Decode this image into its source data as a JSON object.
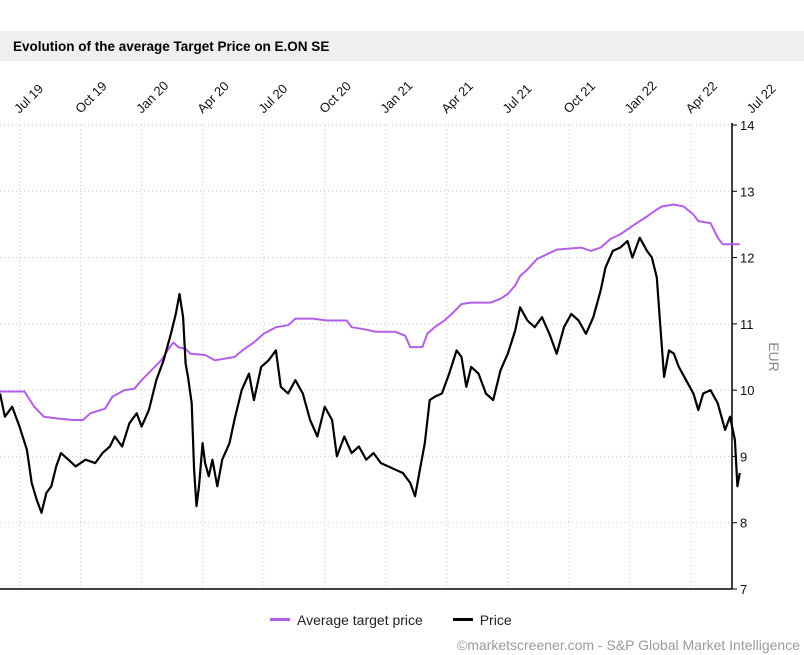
{
  "chart_data": {
    "type": "line",
    "title": "Evolution of the average Target Price on E.ON SE",
    "ylabel": "EUR",
    "xlabel": "",
    "ylim": [
      7,
      14
    ],
    "yticks": [
      7,
      8,
      9,
      10,
      11,
      12,
      13,
      14
    ],
    "xrange": [
      2019.42,
      2022.5
    ],
    "xticks": [
      {
        "t": 2019.5,
        "label": "Jul 19"
      },
      {
        "t": 2019.75,
        "label": "Oct 19"
      },
      {
        "t": 2020.0,
        "label": "Jan 20"
      },
      {
        "t": 2020.25,
        "label": "Apr 20"
      },
      {
        "t": 2020.5,
        "label": "Jul 20"
      },
      {
        "t": 2020.75,
        "label": "Oct 20"
      },
      {
        "t": 2021.0,
        "label": "Jan 21"
      },
      {
        "t": 2021.25,
        "label": "Apr 21"
      },
      {
        "t": 2021.5,
        "label": "Jul 21"
      },
      {
        "t": 2021.75,
        "label": "Oct 21"
      },
      {
        "t": 2022.0,
        "label": "Jan 22"
      },
      {
        "t": 2022.25,
        "label": "Apr 22"
      },
      {
        "t": 2022.5,
        "label": "Jul 22"
      }
    ],
    "grid": true,
    "legend_position": "bottom",
    "series": [
      {
        "name": "Average target price",
        "color": "#b35ee8",
        "points": [
          [
            2019.42,
            9.98
          ],
          [
            2019.52,
            9.98
          ],
          [
            2019.56,
            9.75
          ],
          [
            2019.6,
            9.6
          ],
          [
            2019.66,
            9.57
          ],
          [
            2019.72,
            9.55
          ],
          [
            2019.76,
            9.55
          ],
          [
            2019.79,
            9.65
          ],
          [
            2019.85,
            9.72
          ],
          [
            2019.88,
            9.9
          ],
          [
            2019.93,
            10.0
          ],
          [
            2019.97,
            10.02
          ],
          [
            2020.0,
            10.15
          ],
          [
            2020.04,
            10.3
          ],
          [
            2020.08,
            10.45
          ],
          [
            2020.11,
            10.62
          ],
          [
            2020.13,
            10.72
          ],
          [
            2020.15,
            10.65
          ],
          [
            2020.18,
            10.62
          ],
          [
            2020.2,
            10.55
          ],
          [
            2020.26,
            10.53
          ],
          [
            2020.3,
            10.45
          ],
          [
            2020.38,
            10.5
          ],
          [
            2020.42,
            10.62
          ],
          [
            2020.46,
            10.72
          ],
          [
            2020.5,
            10.85
          ],
          [
            2020.55,
            10.95
          ],
          [
            2020.6,
            10.98
          ],
          [
            2020.63,
            11.08
          ],
          [
            2020.7,
            11.08
          ],
          [
            2020.76,
            11.05
          ],
          [
            2020.84,
            11.05
          ],
          [
            2020.86,
            10.95
          ],
          [
            2020.91,
            10.92
          ],
          [
            2020.96,
            10.88
          ],
          [
            2021.04,
            10.88
          ],
          [
            2021.08,
            10.82
          ],
          [
            2021.1,
            10.65
          ],
          [
            2021.15,
            10.65
          ],
          [
            2021.17,
            10.85
          ],
          [
            2021.2,
            10.95
          ],
          [
            2021.24,
            11.05
          ],
          [
            2021.27,
            11.15
          ],
          [
            2021.31,
            11.3
          ],
          [
            2021.35,
            11.32
          ],
          [
            2021.43,
            11.32
          ],
          [
            2021.47,
            11.38
          ],
          [
            2021.5,
            11.45
          ],
          [
            2021.53,
            11.58
          ],
          [
            2021.55,
            11.72
          ],
          [
            2021.58,
            11.82
          ],
          [
            2021.62,
            11.98
          ],
          [
            2021.66,
            12.05
          ],
          [
            2021.7,
            12.12
          ],
          [
            2021.8,
            12.15
          ],
          [
            2021.84,
            12.1
          ],
          [
            2021.88,
            12.15
          ],
          [
            2021.92,
            12.28
          ],
          [
            2021.96,
            12.35
          ],
          [
            2022.0,
            12.45
          ],
          [
            2022.04,
            12.55
          ],
          [
            2022.07,
            12.62
          ],
          [
            2022.1,
            12.7
          ],
          [
            2022.13,
            12.77
          ],
          [
            2022.18,
            12.8
          ],
          [
            2022.22,
            12.77
          ],
          [
            2022.26,
            12.65
          ],
          [
            2022.28,
            12.55
          ],
          [
            2022.33,
            12.52
          ],
          [
            2022.36,
            12.3
          ],
          [
            2022.38,
            12.2
          ],
          [
            2022.45,
            12.2
          ]
        ]
      },
      {
        "name": "Price",
        "color": "#000000",
        "points": [
          [
            2019.42,
            9.95
          ],
          [
            2019.44,
            9.6
          ],
          [
            2019.47,
            9.75
          ],
          [
            2019.5,
            9.45
          ],
          [
            2019.53,
            9.1
          ],
          [
            2019.55,
            8.6
          ],
          [
            2019.57,
            8.35
          ],
          [
            2019.59,
            8.15
          ],
          [
            2019.61,
            8.45
          ],
          [
            2019.63,
            8.55
          ],
          [
            2019.65,
            8.85
          ],
          [
            2019.67,
            9.05
          ],
          [
            2019.7,
            8.95
          ],
          [
            2019.73,
            8.85
          ],
          [
            2019.77,
            8.95
          ],
          [
            2019.81,
            8.9
          ],
          [
            2019.84,
            9.05
          ],
          [
            2019.87,
            9.15
          ],
          [
            2019.89,
            9.3
          ],
          [
            2019.92,
            9.15
          ],
          [
            2019.95,
            9.5
          ],
          [
            2019.98,
            9.65
          ],
          [
            2020.0,
            9.45
          ],
          [
            2020.03,
            9.7
          ],
          [
            2020.06,
            10.15
          ],
          [
            2020.09,
            10.45
          ],
          [
            2020.12,
            10.85
          ],
          [
            2020.14,
            11.15
          ],
          [
            2020.155,
            11.45
          ],
          [
            2020.17,
            11.1
          ],
          [
            2020.18,
            10.4
          ],
          [
            2020.19,
            10.2
          ],
          [
            2020.205,
            9.8
          ],
          [
            2020.215,
            8.8
          ],
          [
            2020.225,
            8.25
          ],
          [
            2020.235,
            8.55
          ],
          [
            2020.25,
            9.2
          ],
          [
            2020.26,
            8.9
          ],
          [
            2020.275,
            8.7
          ],
          [
            2020.29,
            8.95
          ],
          [
            2020.31,
            8.55
          ],
          [
            2020.33,
            8.95
          ],
          [
            2020.36,
            9.2
          ],
          [
            2020.38,
            9.55
          ],
          [
            2020.41,
            10.0
          ],
          [
            2020.44,
            10.25
          ],
          [
            2020.46,
            9.85
          ],
          [
            2020.49,
            10.35
          ],
          [
            2020.52,
            10.45
          ],
          [
            2020.55,
            10.6
          ],
          [
            2020.57,
            10.05
          ],
          [
            2020.6,
            9.95
          ],
          [
            2020.63,
            10.15
          ],
          [
            2020.66,
            9.95
          ],
          [
            2020.69,
            9.55
          ],
          [
            2020.72,
            9.3
          ],
          [
            2020.75,
            9.75
          ],
          [
            2020.78,
            9.55
          ],
          [
            2020.8,
            9.0
          ],
          [
            2020.83,
            9.3
          ],
          [
            2020.86,
            9.05
          ],
          [
            2020.89,
            9.15
          ],
          [
            2020.92,
            8.95
          ],
          [
            2020.95,
            9.05
          ],
          [
            2020.98,
            8.9
          ],
          [
            2021.01,
            8.85
          ],
          [
            2021.04,
            8.8
          ],
          [
            2021.07,
            8.75
          ],
          [
            2021.1,
            8.6
          ],
          [
            2021.12,
            8.4
          ],
          [
            2021.14,
            8.8
          ],
          [
            2021.16,
            9.2
          ],
          [
            2021.18,
            9.85
          ],
          [
            2021.2,
            9.9
          ],
          [
            2021.23,
            9.95
          ],
          [
            2021.26,
            10.25
          ],
          [
            2021.29,
            10.6
          ],
          [
            2021.31,
            10.5
          ],
          [
            2021.33,
            10.05
          ],
          [
            2021.35,
            10.35
          ],
          [
            2021.38,
            10.25
          ],
          [
            2021.41,
            9.95
          ],
          [
            2021.44,
            9.85
          ],
          [
            2021.47,
            10.3
          ],
          [
            2021.5,
            10.55
          ],
          [
            2021.53,
            10.9
          ],
          [
            2021.55,
            11.25
          ],
          [
            2021.58,
            11.05
          ],
          [
            2021.61,
            10.95
          ],
          [
            2021.64,
            11.1
          ],
          [
            2021.67,
            10.85
          ],
          [
            2021.7,
            10.55
          ],
          [
            2021.73,
            10.95
          ],
          [
            2021.76,
            11.15
          ],
          [
            2021.79,
            11.05
          ],
          [
            2021.82,
            10.85
          ],
          [
            2021.85,
            11.1
          ],
          [
            2021.88,
            11.5
          ],
          [
            2021.9,
            11.85
          ],
          [
            2021.93,
            12.1
          ],
          [
            2021.96,
            12.15
          ],
          [
            2021.99,
            12.25
          ],
          [
            2022.01,
            12.0
          ],
          [
            2022.04,
            12.3
          ],
          [
            2022.07,
            12.1
          ],
          [
            2022.09,
            12.0
          ],
          [
            2022.11,
            11.7
          ],
          [
            2022.125,
            10.95
          ],
          [
            2022.14,
            10.2
          ],
          [
            2022.16,
            10.6
          ],
          [
            2022.18,
            10.55
          ],
          [
            2022.2,
            10.35
          ],
          [
            2022.23,
            10.15
          ],
          [
            2022.26,
            9.95
          ],
          [
            2022.28,
            9.7
          ],
          [
            2022.3,
            9.95
          ],
          [
            2022.33,
            10.0
          ],
          [
            2022.36,
            9.8
          ],
          [
            2022.39,
            9.4
          ],
          [
            2022.41,
            9.6
          ],
          [
            2022.43,
            9.25
          ],
          [
            2022.44,
            8.55
          ],
          [
            2022.45,
            8.75
          ]
        ]
      }
    ]
  },
  "legend": {
    "items": [
      {
        "label": "Average target price",
        "color": "#b35ee8"
      },
      {
        "label": "Price",
        "color": "#000000"
      }
    ]
  },
  "footer": {
    "source": "©marketscreener.com - S&P Global Market Intelligence"
  }
}
